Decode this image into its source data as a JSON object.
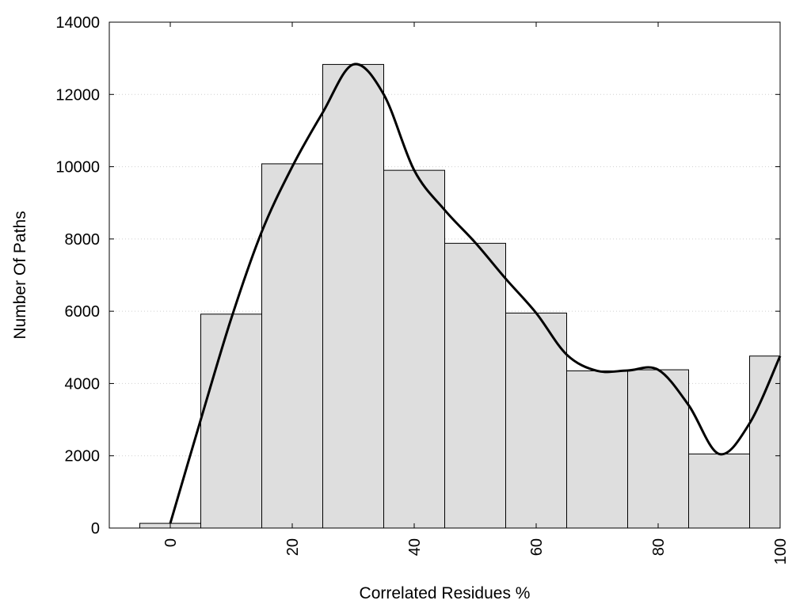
{
  "chart_data": {
    "type": "bar",
    "title": "",
    "xlabel": "Correlated Residues %",
    "ylabel": "Number Of Paths",
    "xlim": [
      -10,
      100
    ],
    "ylim": [
      0,
      14000
    ],
    "grid": "horizontal dotted",
    "bar_width": 10,
    "x_ticks": [
      0,
      20,
      40,
      60,
      80,
      100
    ],
    "y_ticks": [
      0,
      2000,
      4000,
      6000,
      8000,
      10000,
      12000,
      14000
    ],
    "x": [
      0,
      10,
      20,
      30,
      40,
      50,
      60,
      70,
      80,
      90,
      100
    ],
    "values": [
      130,
      5920,
      10080,
      12830,
      9900,
      7880,
      5950,
      4350,
      4380,
      2050,
      4760
    ],
    "curve": {
      "x": [
        0,
        5,
        10,
        15,
        20,
        25,
        30,
        35,
        40,
        45,
        50,
        55,
        60,
        65,
        70,
        75,
        80,
        85,
        90,
        95,
        100
      ],
      "y": [
        130,
        3000,
        5800,
        8200,
        10000,
        11500,
        12830,
        12000,
        9900,
        8800,
        7900,
        6900,
        5950,
        4800,
        4350,
        4360,
        4380,
        3400,
        2050,
        2900,
        4760
      ]
    },
    "colors": {
      "bar_fill": "#dedede",
      "bar_stroke": "#000000",
      "curve": "#000000",
      "grid": "#cfcfcf"
    }
  }
}
